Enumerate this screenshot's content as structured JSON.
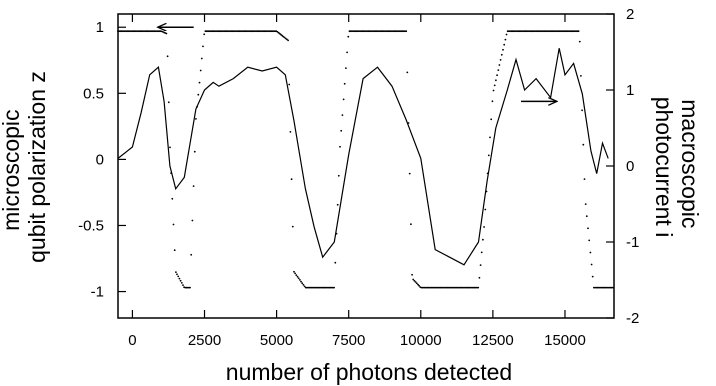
{
  "chart_data": {
    "type": "line",
    "title": "",
    "xlabel": "number of photons detected",
    "ylabel_left": [
      "microscopic",
      "qubit polarization z"
    ],
    "ylabel_right": [
      "macroscopic",
      "photocurrent i"
    ],
    "xlim": [
      -500,
      16700
    ],
    "ylim_left": [
      -1.2,
      1.1
    ],
    "ylim_right": [
      -2,
      2
    ],
    "x_ticks": [
      0,
      2500,
      5000,
      7500,
      10000,
      12500,
      15000
    ],
    "x_tick_labels": [
      "0",
      "2500",
      "5000",
      "7500",
      "10000",
      "12500",
      "15000"
    ],
    "y_left_ticks": [
      -1,
      -0.5,
      0,
      0.5,
      1
    ],
    "y_left_tick_labels": [
      "-1",
      "-0.5",
      "0",
      "0.5",
      "1"
    ],
    "y_right_ticks": [
      -2,
      -1,
      0,
      1,
      2
    ],
    "y_right_tick_labels": [
      "-2",
      "-1",
      "0",
      "1",
      "2"
    ],
    "grid": false,
    "series": [
      {
        "axis": "right",
        "style": "solid",
        "x": [
          -500,
          0,
          300,
          600,
          900,
          1100,
          1300,
          1500,
          1800,
          2000,
          2200,
          2500,
          2800,
          3000,
          3500,
          4000,
          4500,
          5000,
          5300,
          5600,
          6000,
          6300,
          6600,
          7000,
          7500,
          8000,
          8500,
          9000,
          9500,
          10000,
          10500,
          11000,
          11500,
          12000,
          12300,
          12600,
          13000,
          13300,
          13600,
          14000,
          14500,
          14800,
          15000,
          15300,
          15600,
          15900,
          16100,
          16300,
          16500
        ],
        "y": [
          0.1,
          0.25,
          0.7,
          1.2,
          1.3,
          0.85,
          0.0,
          -0.3,
          -0.15,
          0.3,
          0.75,
          1.0,
          1.1,
          1.05,
          1.15,
          1.3,
          1.25,
          1.3,
          1.2,
          0.6,
          -0.3,
          -0.8,
          -1.2,
          -1.0,
          0.15,
          1.15,
          1.3,
          1.05,
          0.6,
          0.1,
          -1.1,
          -1.2,
          -1.3,
          -1.0,
          -0.2,
          0.5,
          1.0,
          1.4,
          1.0,
          1.15,
          0.9,
          1.55,
          1.2,
          1.35,
          0.95,
          0.2,
          -0.1,
          0.3,
          0.1
        ]
      },
      {
        "axis": "left",
        "style": "dotted",
        "x": [
          -500,
          0,
          500,
          1000,
          1200,
          1300,
          1500,
          1800,
          2000,
          2200,
          2500,
          3000,
          4000,
          5000,
          5400,
          5600,
          6000,
          6500,
          7000,
          7200,
          7500,
          8000,
          9000,
          9500,
          9700,
          10000,
          11000,
          12000,
          12200,
          12500,
          13000,
          14000,
          15000,
          15500,
          15700,
          16000,
          16400,
          16700
        ],
        "y": [
          0.97,
          0.97,
          0.97,
          0.97,
          0.95,
          0.1,
          -0.85,
          -0.97,
          -0.97,
          0.3,
          0.97,
          0.97,
          0.97,
          0.97,
          0.9,
          -0.85,
          -0.97,
          -0.97,
          -0.97,
          0.1,
          0.97,
          0.97,
          0.97,
          0.97,
          -0.9,
          -0.97,
          -0.97,
          -0.97,
          -0.5,
          0.5,
          0.97,
          0.97,
          0.97,
          0.97,
          -0.3,
          -0.97,
          -0.97,
          -0.97
        ]
      }
    ],
    "annotations": [
      {
        "type": "arrow",
        "direction": "left",
        "refers_to_axis": "left",
        "near": [
          1500,
          1.0
        ]
      },
      {
        "type": "arrow",
        "direction": "right",
        "refers_to_axis": "right",
        "near": [
          14100,
          0.85
        ]
      }
    ]
  }
}
